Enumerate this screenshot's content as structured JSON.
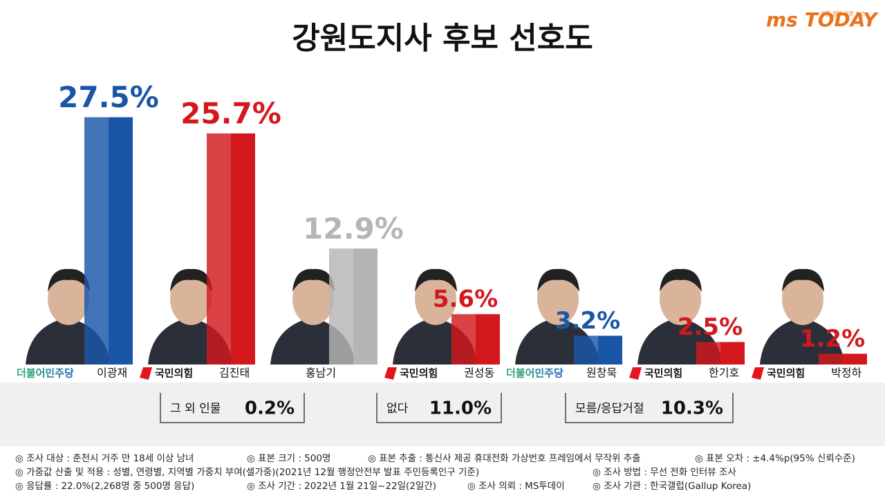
{
  "header": {
    "logo": "ms TODAY",
    "logo_tagline": "생활 경제 전문 뉴스"
  },
  "chart_data": {
    "type": "bar",
    "title": "강원도지사 후보 선호도",
    "categories": [
      "이광재",
      "김진태",
      "홍남기",
      "권성동",
      "원창묵",
      "한기호",
      "박정하"
    ],
    "parties": [
      "더불어민주당",
      "국민의힘",
      null,
      "국민의힘",
      "더불어민주당",
      "국민의힘",
      "국민의힘"
    ],
    "values": [
      27.5,
      25.7,
      12.9,
      5.6,
      3.2,
      2.5,
      1.2
    ],
    "value_labels": [
      "27.5%",
      "25.7%",
      "12.9%",
      "5.6%",
      "3.2%",
      "2.5%",
      "1.2%"
    ],
    "colors": [
      "#1a56a8",
      "#d3181d",
      "#b5b5b5",
      "#d3181d",
      "#1a56a8",
      "#d3181d",
      "#d3181d"
    ],
    "ylim": [
      0,
      30
    ]
  },
  "other_responses": [
    {
      "label": "그 외 인물",
      "value": "0.2%"
    },
    {
      "label": "없다",
      "value": "11.0%"
    },
    {
      "label": "모름/응답거절",
      "value": "10.3%"
    }
  ],
  "notes": [
    [
      "◎ 조사 대상 : 춘천시 거주 만 18세 이상 남녀",
      "◎ 표본 크기 : 500명",
      "◎ 표본 추출 : 통신사 제공 휴대전화 가상번호 프레임에서 무작위 추출",
      "◎ 표본 오차 : ±4.4%p(95% 신뢰수준)"
    ],
    [
      "◎ 가중값 산출 및 적용 : 성별, 연령별, 지역별 가중치 부여(셀가중)(2021년 12월 행정안전부 발표 주민등록인구 기준)",
      "◎ 조사 방법 : 무선 전화 인터뷰 조사"
    ],
    [
      "◎ 응답률 : 22.0%(2,268명 중 500명 응답)",
      "◎ 조사 기간 : 2022년 1월 21일~22일(2일간)",
      "◎ 조사 의뢰 : MS투데이",
      "◎ 조사 기관 : 한국갤럽(Gallup Korea)"
    ]
  ]
}
